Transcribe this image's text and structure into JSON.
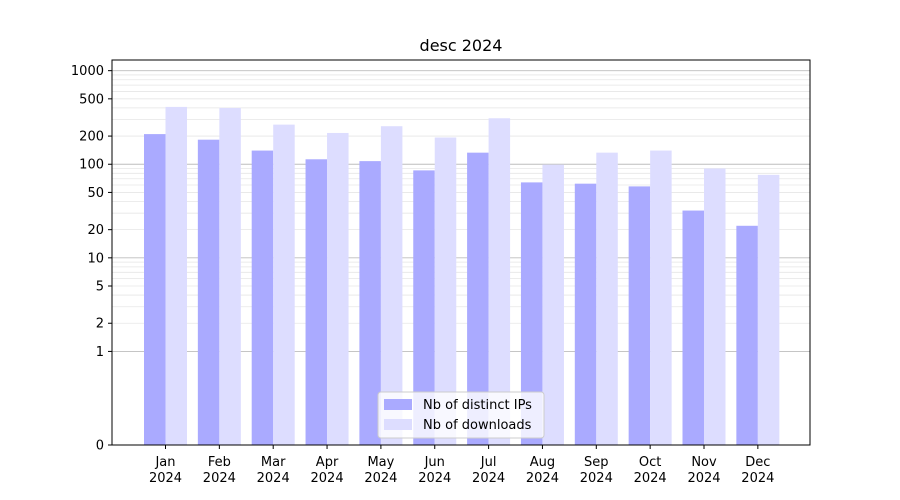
{
  "chart_data": {
    "type": "bar",
    "title": "desc 2024",
    "xlabel": "",
    "ylabel": "",
    "y_scale": "symlog",
    "ylim": [
      0,
      1300
    ],
    "y_ticks": [
      0,
      1,
      2,
      5,
      10,
      20,
      50,
      100,
      200,
      500,
      1000
    ],
    "grid": true,
    "legend_position": "bottom-center",
    "categories": [
      [
        "Jan",
        "2024"
      ],
      [
        "Feb",
        "2024"
      ],
      [
        "Mar",
        "2024"
      ],
      [
        "Apr",
        "2024"
      ],
      [
        "May",
        "2024"
      ],
      [
        "Jun",
        "2024"
      ],
      [
        "Jul",
        "2024"
      ],
      [
        "Aug",
        "2024"
      ],
      [
        "Sep",
        "2024"
      ],
      [
        "Oct",
        "2024"
      ],
      [
        "Nov",
        "2024"
      ],
      [
        "Dec",
        "2024"
      ]
    ],
    "series": [
      {
        "name": "Nb of distinct IPs",
        "color": "#aaaaff",
        "values": [
          210,
          183,
          140,
          113,
          108,
          86,
          133,
          64,
          62,
          58,
          32,
          22
        ]
      },
      {
        "name": "Nb of downloads",
        "color": "#ddddff",
        "values": [
          410,
          400,
          265,
          216,
          255,
          193,
          310,
          99,
          133,
          140,
          90,
          77
        ]
      }
    ]
  }
}
